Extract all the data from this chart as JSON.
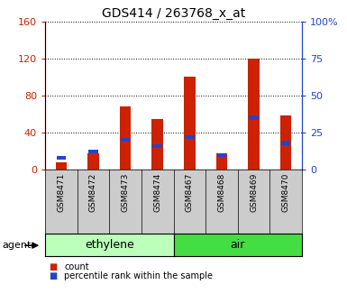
{
  "title": "GDS414 / 263768_x_at",
  "categories": [
    "GSM8471",
    "GSM8472",
    "GSM8473",
    "GSM8474",
    "GSM8467",
    "GSM8468",
    "GSM8469",
    "GSM8470"
  ],
  "count_values": [
    8,
    18,
    68,
    55,
    100,
    18,
    120,
    58
  ],
  "percentile_values": [
    8,
    12,
    20,
    16,
    22,
    10,
    35,
    18
  ],
  "count_color": "#cc2200",
  "percentile_color": "#2244cc",
  "ylim_left": [
    0,
    160
  ],
  "ylim_right": [
    0,
    100
  ],
  "yticks_left": [
    0,
    40,
    80,
    120,
    160
  ],
  "yticks_right": [
    0,
    25,
    50,
    75,
    100
  ],
  "ytick_labels_right": [
    "0",
    "25",
    "50",
    "75",
    "100%"
  ],
  "groups": [
    {
      "label": "ethylene",
      "indices": [
        0,
        1,
        2,
        3
      ],
      "color": "#bbffbb"
    },
    {
      "label": "air",
      "indices": [
        4,
        5,
        6,
        7
      ],
      "color": "#44dd44"
    }
  ],
  "agent_label": "agent",
  "legend_count": "count",
  "legend_percentile": "percentile rank within the sample",
  "bar_width": 0.35,
  "xlim": [
    -0.5,
    7.5
  ],
  "n_bars": 8
}
